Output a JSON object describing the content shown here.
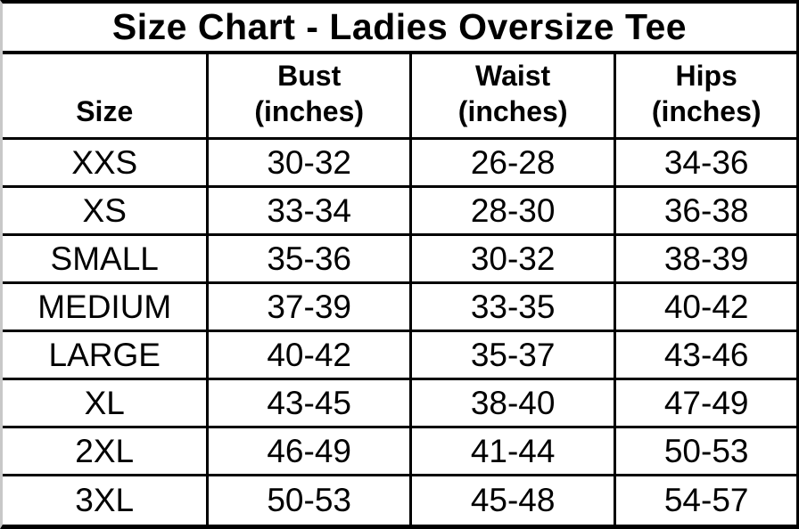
{
  "page": {
    "background_color": "#ffffff",
    "grid_line_color": "#000000",
    "left_edge_color": "#c8c8c8",
    "text_color": "#000000"
  },
  "table": {
    "title": "Size Chart - Ladies Oversize Tee",
    "headers": [
      "Size",
      "Bust\n(inches)",
      "Waist\n(inches)",
      "Hips\n(inches)"
    ],
    "rows": [
      {
        "size": "XXS",
        "bust": "30-32",
        "waist": "26-28",
        "hips": "34-36"
      },
      {
        "size": "XS",
        "bust": "33-34",
        "waist": "28-30",
        "hips": "36-38"
      },
      {
        "size": "SMALL",
        "bust": "35-36",
        "waist": "30-32",
        "hips": "38-39"
      },
      {
        "size": "MEDIUM",
        "bust": "37-39",
        "waist": "33-35",
        "hips": "40-42"
      },
      {
        "size": "LARGE",
        "bust": "40-42",
        "waist": "35-37",
        "hips": "43-46"
      },
      {
        "size": "XL",
        "bust": "43-45",
        "waist": "38-40",
        "hips": "47-49"
      },
      {
        "size": "2XL",
        "bust": "46-49",
        "waist": "41-44",
        "hips": "50-53"
      },
      {
        "size": "3XL",
        "bust": "50-53",
        "waist": "45-48",
        "hips": "54-57"
      }
    ]
  },
  "chart_data": {
    "type": "table",
    "title": "Size Chart - Ladies Oversize Tee",
    "columns": [
      "Size",
      "Bust (inches)",
      "Waist (inches)",
      "Hips (inches)"
    ],
    "rows": [
      [
        "XXS",
        "30-32",
        "26-28",
        "34-36"
      ],
      [
        "XS",
        "33-34",
        "28-30",
        "36-38"
      ],
      [
        "SMALL",
        "35-36",
        "30-32",
        "38-39"
      ],
      [
        "MEDIUM",
        "37-39",
        "33-35",
        "40-42"
      ],
      [
        "LARGE",
        "40-42",
        "35-37",
        "43-46"
      ],
      [
        "XL",
        "43-45",
        "38-40",
        "47-49"
      ],
      [
        "2XL",
        "46-49",
        "41-44",
        "50-53"
      ],
      [
        "3XL",
        "50-53",
        "45-48",
        "54-57"
      ]
    ],
    "layout": {
      "grid": true,
      "header_row_bold": true,
      "title_row_bold": true
    }
  }
}
